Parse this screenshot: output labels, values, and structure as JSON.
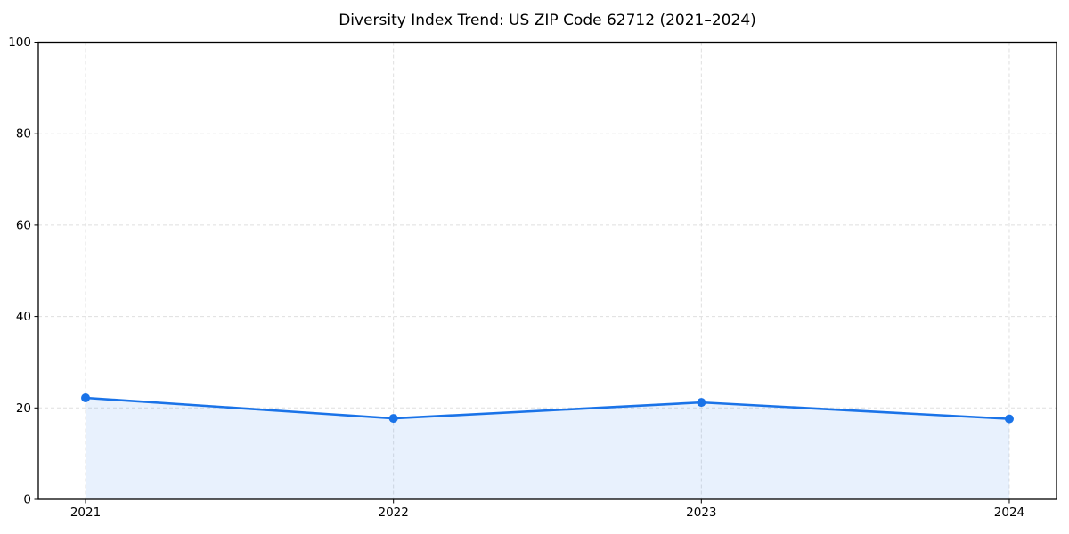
{
  "figure": {
    "title": "Diversity Index Trend: US ZIP Code 62712 (2021–2024)"
  },
  "chart_data": {
    "type": "area",
    "categories": [
      "2021",
      "2022",
      "2023",
      "2024"
    ],
    "values": [
      22.2,
      17.7,
      21.2,
      17.6
    ],
    "title": "Diversity Index Trend: US ZIP Code 62712 (2021–2024)",
    "xlabel": "",
    "ylabel": "",
    "ylim": [
      0,
      100
    ],
    "yticks": [
      0,
      20,
      40,
      60,
      80,
      100
    ],
    "grid": true,
    "grid_style": "dashed",
    "legend": "none",
    "marker": "circle",
    "colors": {
      "line": "#1a73e8",
      "fill": "rgba(26,115,232,0.10)",
      "grid": "#dfdfdf",
      "spine": "#000000",
      "text": "#000000"
    }
  }
}
